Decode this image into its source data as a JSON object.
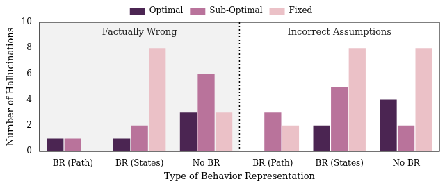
{
  "chart_data": {
    "type": "bar",
    "x_label": "Type of Behavior Representation",
    "y_label": "Number of Hallucinations",
    "categories": [
      "BR (Path)",
      "BR (States)",
      "No BR",
      "BR (Path)",
      "BR (States)",
      "No BR"
    ],
    "annotations": [
      "Factually Wrong",
      "Incorrect Assumptions"
    ],
    "series": [
      {
        "name": "Optimal",
        "color": "#4b2552",
        "values": [
          1,
          1,
          3,
          0,
          2,
          4
        ]
      },
      {
        "name": "Sub-Optimal",
        "color": "#b9739b",
        "values": [
          1,
          2,
          6,
          3,
          5,
          2
        ]
      },
      {
        "name": "Fixed",
        "color": "#ebc1c7",
        "values": [
          0,
          8,
          3,
          2,
          8,
          8
        ]
      }
    ],
    "ylim": [
      0,
      10
    ],
    "yticks": [
      0,
      2,
      4,
      6,
      8,
      10
    ],
    "grid": false,
    "legend": "top"
  }
}
